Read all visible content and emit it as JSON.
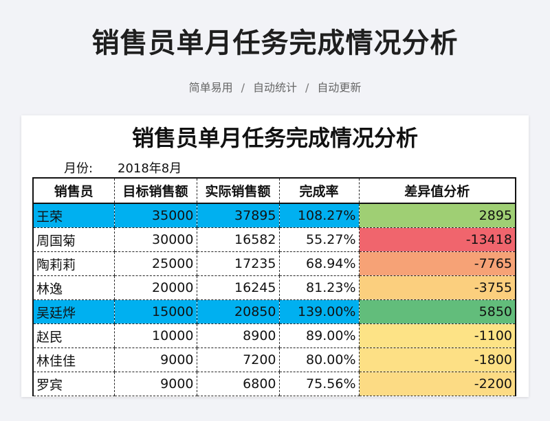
{
  "header": {
    "title": "销售员单月任务完成情况分析",
    "tags": [
      "简单易用",
      "自动统计",
      "自动更新"
    ]
  },
  "sheet": {
    "title": "销售员单月任务完成情况分析",
    "month_label": "月份:",
    "month_value": "2018年8月",
    "columns": [
      "销售员",
      "目标销售额",
      "实际销售额",
      "完成率",
      "差异值分析"
    ],
    "rows": [
      {
        "name": "王荣",
        "target": "35000",
        "actual": "37895",
        "rate": "108.27%",
        "diff": "2895",
        "highlight": true,
        "diff_color": "#9fcf74"
      },
      {
        "name": "周国菊",
        "target": "30000",
        "actual": "16582",
        "rate": "55.27%",
        "diff": "-13418",
        "highlight": false,
        "diff_color": "#f0656d"
      },
      {
        "name": "陶莉莉",
        "target": "25000",
        "actual": "17235",
        "rate": "68.94%",
        "diff": "-7765",
        "highlight": false,
        "diff_color": "#f6a276"
      },
      {
        "name": "林逸",
        "target": "20000",
        "actual": "16245",
        "rate": "81.23%",
        "diff": "-3755",
        "highlight": false,
        "diff_color": "#fbcf7e"
      },
      {
        "name": "吴廷烨",
        "target": "15000",
        "actual": "20850",
        "rate": "139.00%",
        "diff": "5850",
        "highlight": true,
        "diff_color": "#62bd7b"
      },
      {
        "name": "赵民",
        "target": "10000",
        "actual": "8900",
        "rate": "89.00%",
        "diff": "-1100",
        "highlight": false,
        "diff_color": "#fde386"
      },
      {
        "name": "林佳佳",
        "target": "9000",
        "actual": "7200",
        "rate": "80.00%",
        "diff": "-1800",
        "highlight": false,
        "diff_color": "#fde085"
      },
      {
        "name": "罗宾",
        "target": "9000",
        "actual": "6800",
        "rate": "75.56%",
        "diff": "-2200",
        "highlight": false,
        "diff_color": "#fcdb84"
      }
    ]
  }
}
